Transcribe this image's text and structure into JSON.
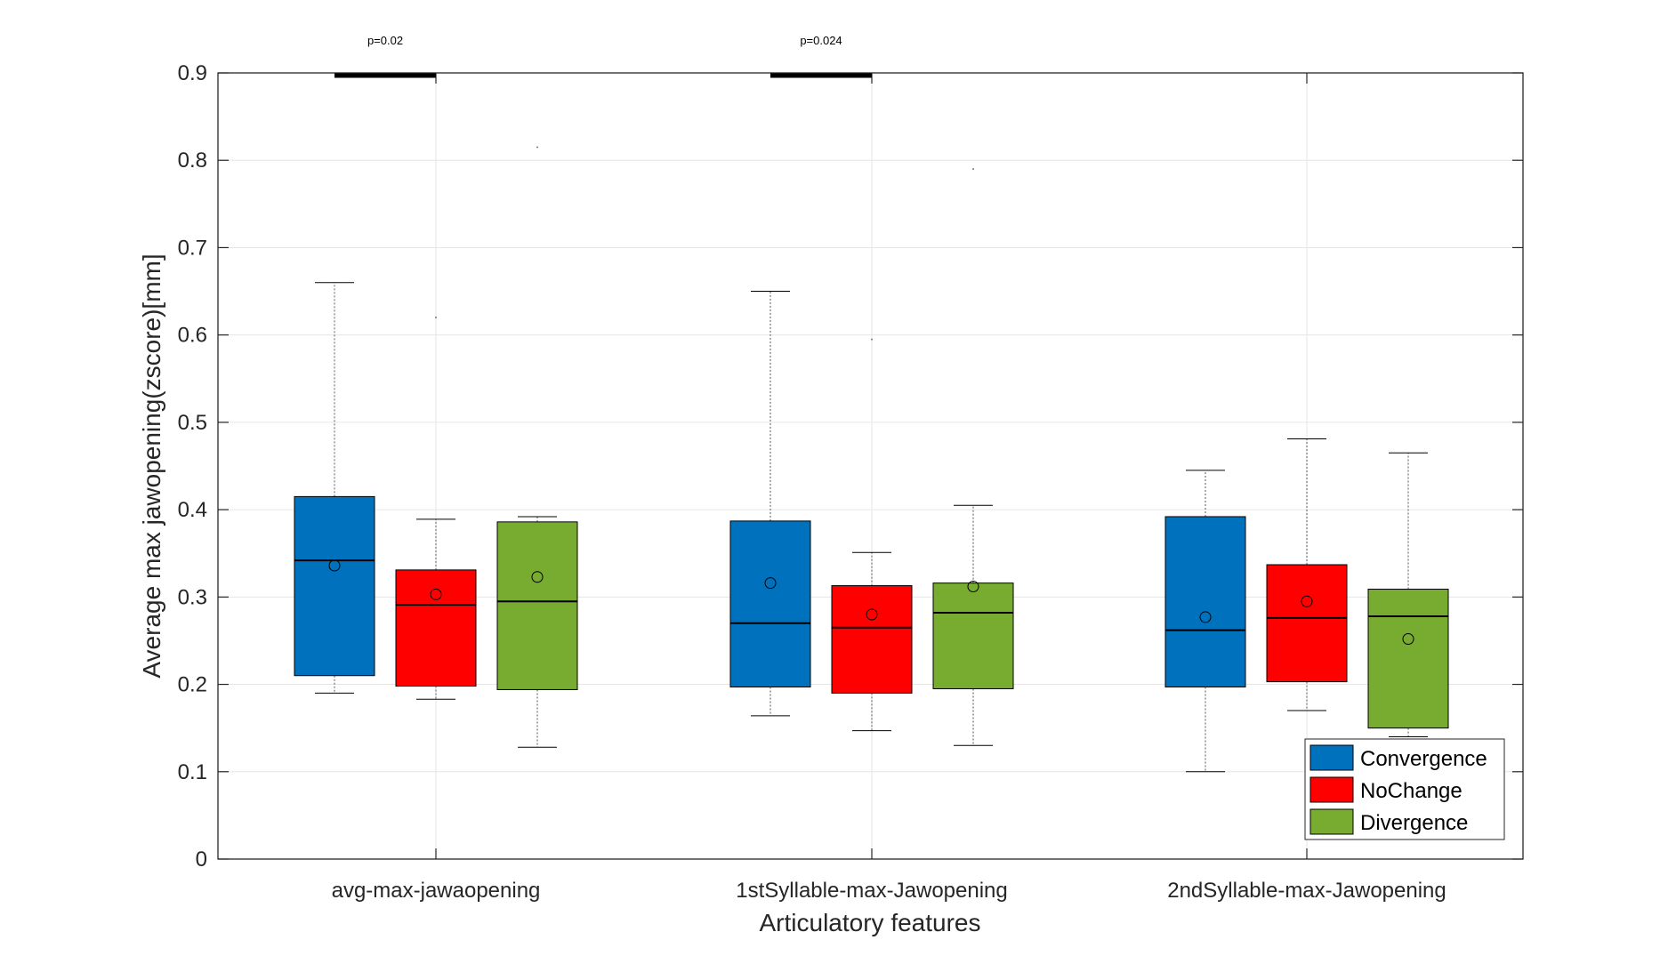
{
  "chart_data": {
    "type": "boxplot",
    "categories": [
      "avg-max-jawaopening",
      "1stSyllable-max-Jawopening",
      "2ndSyllable-max-Jawopening"
    ],
    "xlabel": "Articulatory features",
    "ylabel": "Average max jawopening(zscore)[mm]",
    "ylim": [
      0,
      0.9
    ],
    "yticks": [
      0,
      0.1,
      0.2,
      0.3,
      0.4,
      0.5,
      0.6,
      0.7,
      0.8,
      0.9
    ],
    "ytick_labels": [
      "0",
      "0.1",
      "0.2",
      "0.3",
      "0.4",
      "0.5",
      "0.6",
      "0.7",
      "0.8",
      "0.9"
    ],
    "grid": true,
    "legend_position": "bottom-right",
    "series": [
      {
        "name": "Convergence",
        "color": "#0072BD",
        "boxes": [
          {
            "whisker_low": 0.19,
            "q1": 0.21,
            "median": 0.342,
            "q3": 0.415,
            "whisker_high": 0.66,
            "mean": 0.336,
            "outliers": []
          },
          {
            "whisker_low": 0.164,
            "q1": 0.197,
            "median": 0.27,
            "q3": 0.387,
            "whisker_high": 0.65,
            "mean": 0.316,
            "outliers": []
          },
          {
            "whisker_low": 0.1,
            "q1": 0.197,
            "median": 0.262,
            "q3": 0.392,
            "whisker_high": 0.445,
            "mean": 0.277,
            "outliers": []
          }
        ]
      },
      {
        "name": "NoChange",
        "color": "#FF0000",
        "boxes": [
          {
            "whisker_low": 0.183,
            "q1": 0.198,
            "median": 0.291,
            "q3": 0.331,
            "whisker_high": 0.389,
            "mean": 0.303,
            "outliers": [
              0.62
            ]
          },
          {
            "whisker_low": 0.147,
            "q1": 0.19,
            "median": 0.265,
            "q3": 0.313,
            "whisker_high": 0.351,
            "mean": 0.28,
            "outliers": [
              0.595
            ]
          },
          {
            "whisker_low": 0.17,
            "q1": 0.203,
            "median": 0.276,
            "q3": 0.337,
            "whisker_high": 0.481,
            "mean": 0.295,
            "outliers": []
          }
        ]
      },
      {
        "name": "Divergence",
        "color": "#77AC30",
        "boxes": [
          {
            "whisker_low": 0.128,
            "q1": 0.194,
            "median": 0.295,
            "q3": 0.386,
            "whisker_high": 0.392,
            "mean": 0.323,
            "outliers": [
              0.815
            ]
          },
          {
            "whisker_low": 0.13,
            "q1": 0.195,
            "median": 0.282,
            "q3": 0.316,
            "whisker_high": 0.405,
            "mean": 0.312,
            "outliers": [
              0.79
            ]
          },
          {
            "whisker_low": 0.14,
            "q1": 0.15,
            "median": 0.278,
            "q3": 0.309,
            "whisker_high": 0.465,
            "mean": 0.252,
            "outliers": []
          }
        ]
      }
    ],
    "significance": [
      {
        "category_index": 0,
        "label": "p=0.02",
        "value": 0.897
      },
      {
        "category_index": 1,
        "label": "p=0.024",
        "value": 0.897
      }
    ]
  }
}
